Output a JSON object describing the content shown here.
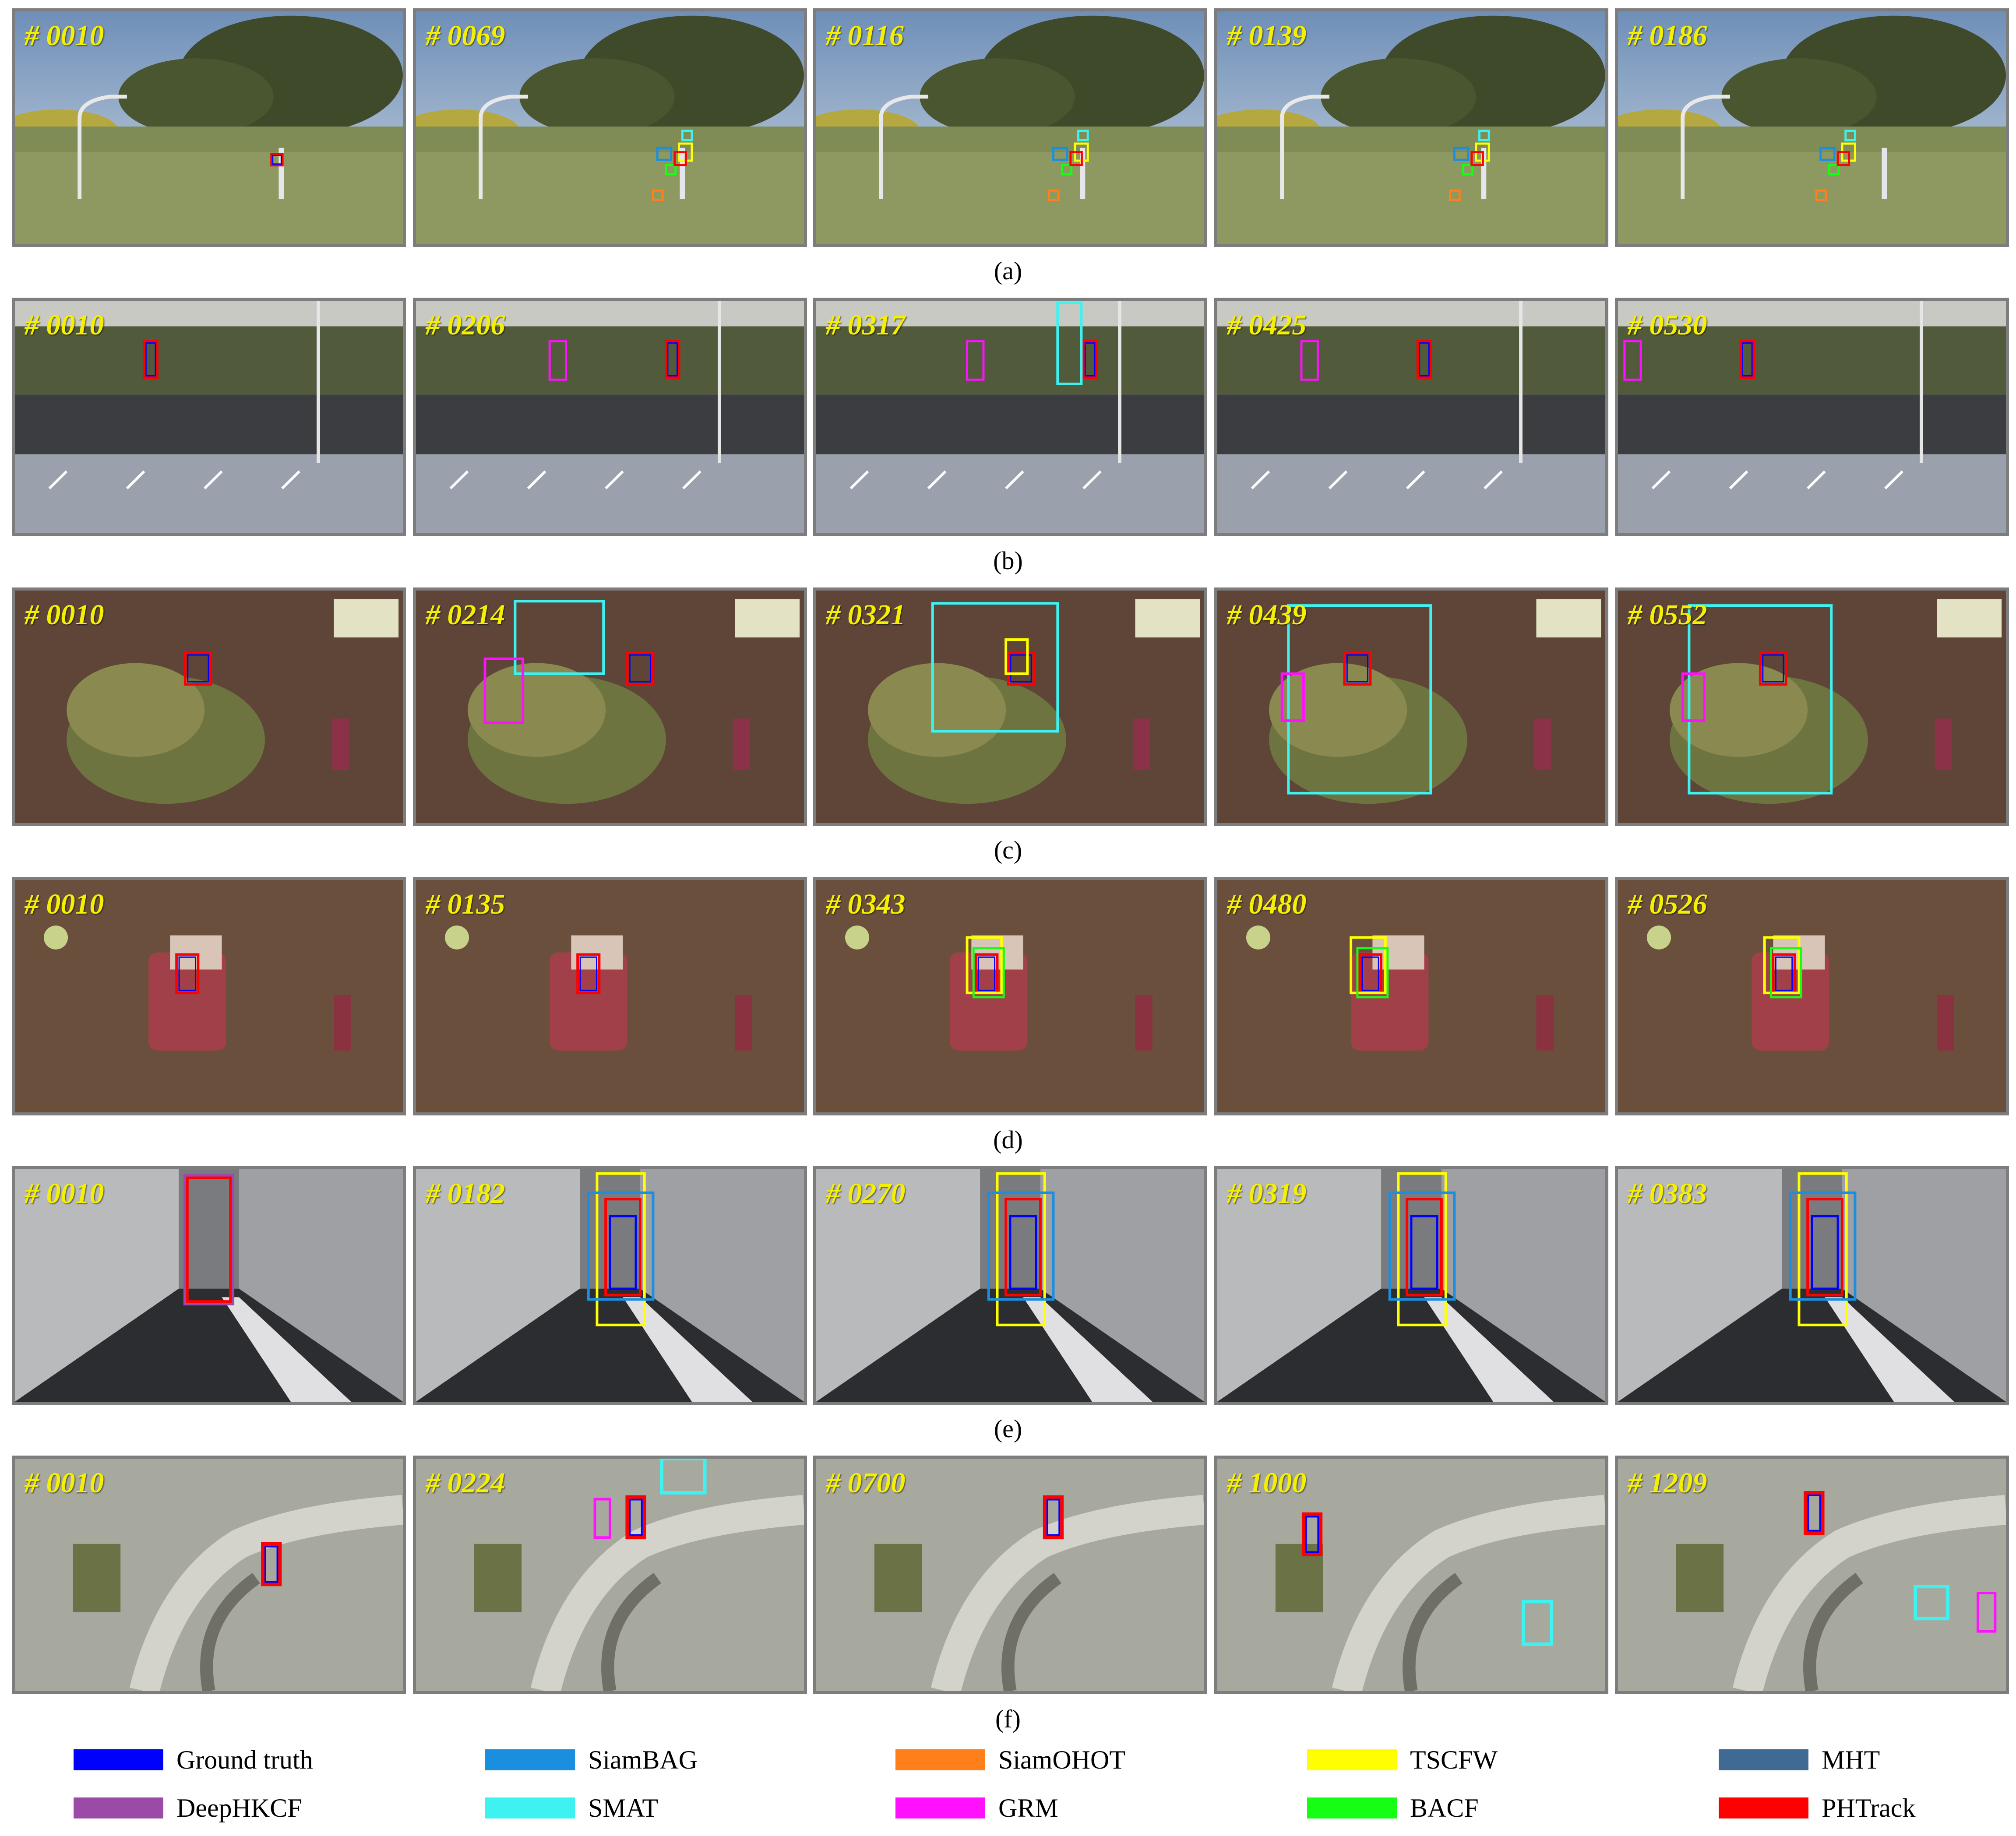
{
  "colors": {
    "ground_truth": "#0000ff",
    "siambag": "#1a8fe0",
    "siamohot": "#ff7f1a",
    "tscfw": "#ffff00",
    "mht": "#3f6a94",
    "deephkcf": "#9b4aa8",
    "smat": "#3ef2f2",
    "grm": "#ff10ff",
    "bacf": "#14ff14",
    "phtrack": "#ff0000"
  },
  "rows": [
    {
      "caption": "(a)",
      "scene": "field",
      "frames": [
        "# 0010",
        "# 0069",
        "# 0116",
        "# 0139",
        "# 0186"
      ]
    },
    {
      "caption": "(b)",
      "scene": "carpark",
      "frames": [
        "# 0010",
        "# 0206",
        "# 0317",
        "# 0425",
        "# 0530"
      ]
    },
    {
      "caption": "(c)",
      "scene": "plants",
      "frames": [
        "# 0010",
        "# 0214",
        "# 0321",
        "# 0439",
        "# 0552"
      ]
    },
    {
      "caption": "(d)",
      "scene": "bag",
      "frames": [
        "# 0010",
        "# 0135",
        "# 0343",
        "# 0480",
        "# 0526"
      ]
    },
    {
      "caption": "(e)",
      "scene": "walkway",
      "frames": [
        "# 0010",
        "# 0182",
        "# 0270",
        "# 0319",
        "# 0383"
      ]
    },
    {
      "caption": "(f)",
      "scene": "aerial",
      "frames": [
        "# 0010",
        "# 0224",
        "# 0700",
        "# 1000",
        "# 1209"
      ]
    }
  ],
  "legend": [
    {
      "label": "Ground truth",
      "color_key": "ground_truth"
    },
    {
      "label": "SiamBAG",
      "color_key": "siambag"
    },
    {
      "label": "SiamOHOT",
      "color_key": "siamohot"
    },
    {
      "label": "TSCFW",
      "color_key": "tscfw"
    },
    {
      "label": "MHT",
      "color_key": "mht"
    },
    {
      "label": "DeepHKCF",
      "color_key": "deephkcf"
    },
    {
      "label": "SMAT",
      "color_key": "smat"
    },
    {
      "label": "GRM",
      "color_key": "grm"
    },
    {
      "label": "BACF",
      "color_key": "bacf"
    },
    {
      "label": "PHTrack",
      "color_key": "phtrack"
    }
  ]
}
